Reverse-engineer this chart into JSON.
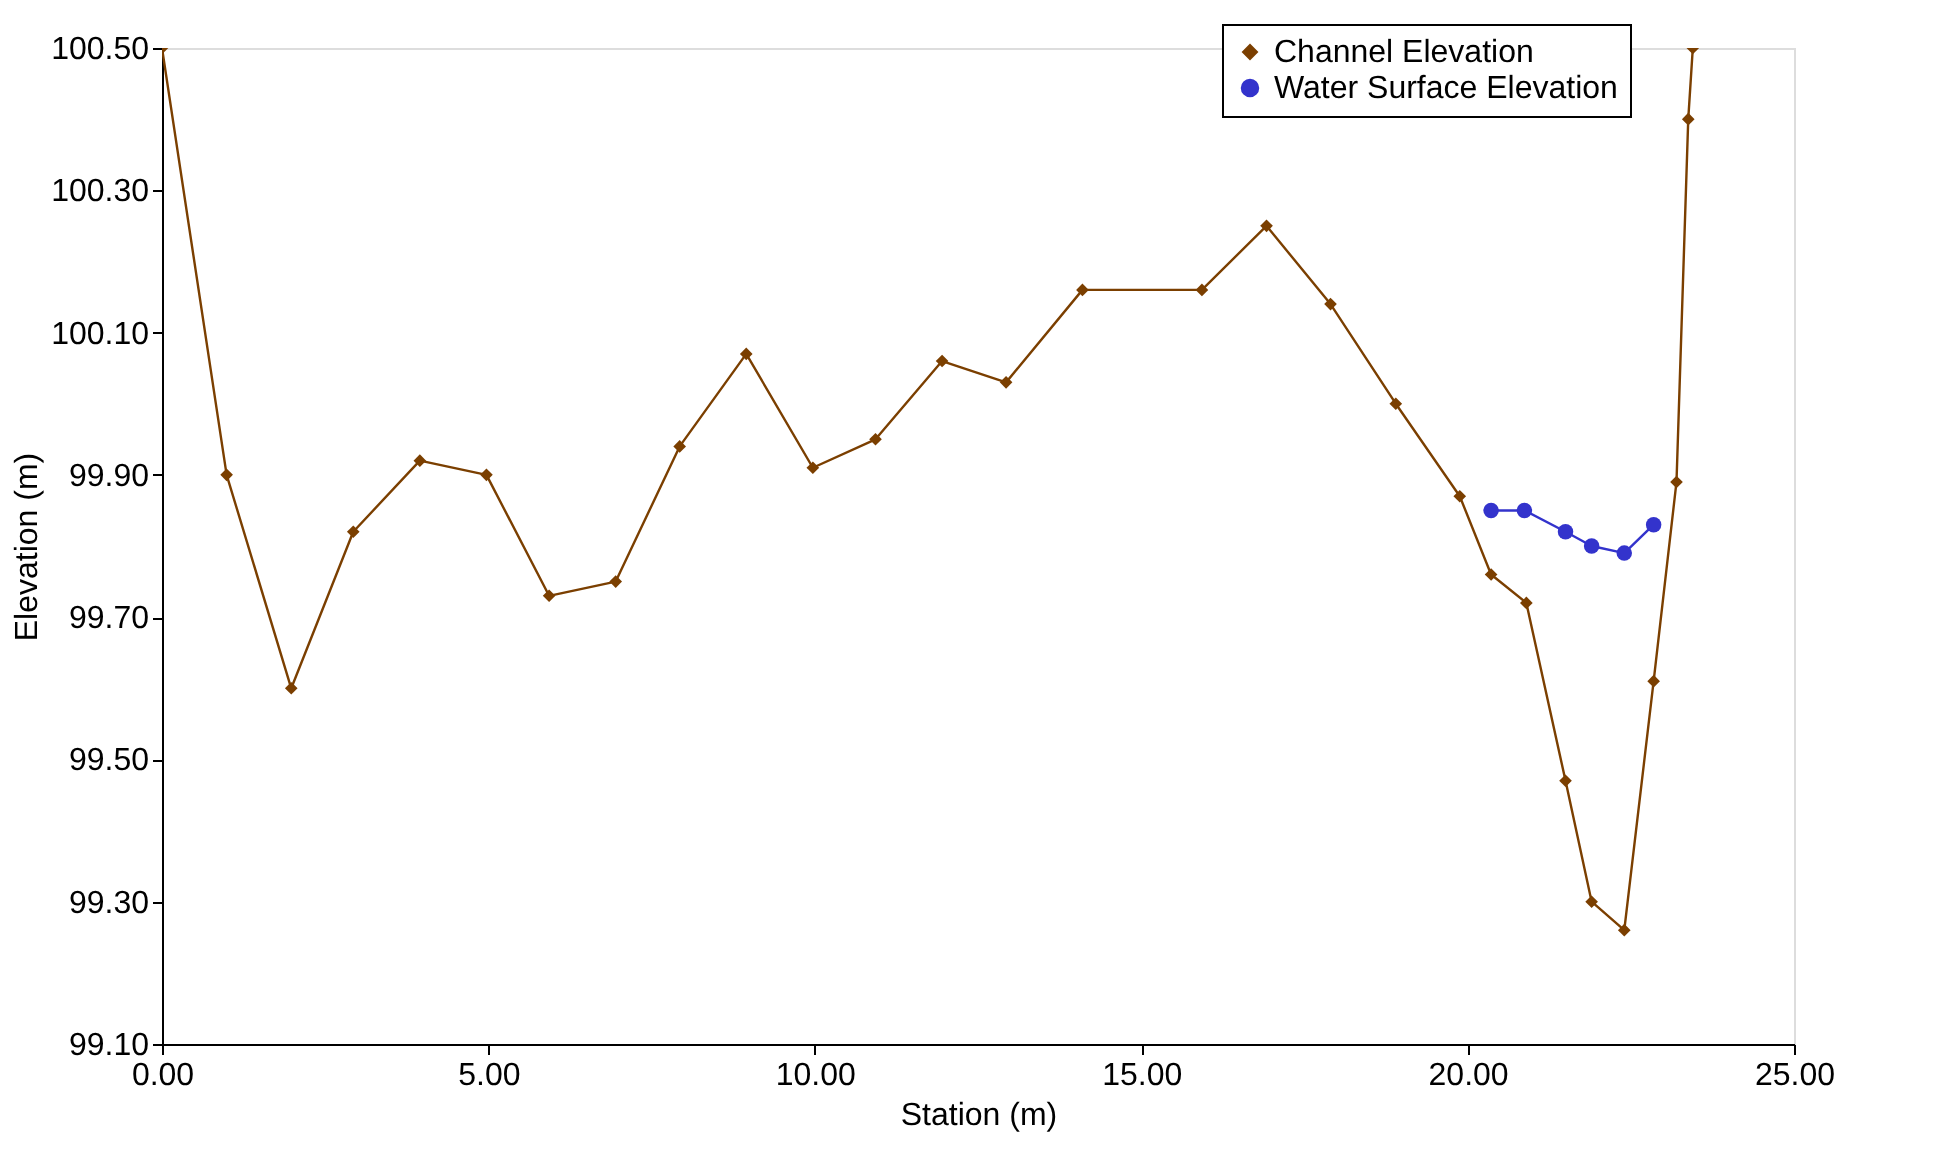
{
  "chart_data": {
    "type": "line",
    "xlabel": "Station (m)",
    "ylabel": "Elevation (m)",
    "xlim": [
      0,
      25
    ],
    "ylim": [
      99.1,
      100.5
    ],
    "xticks": [
      {
        "value": 0,
        "label": "0.00"
      },
      {
        "value": 5,
        "label": "5.00"
      },
      {
        "value": 10,
        "label": "10.00"
      },
      {
        "value": 15,
        "label": "15.00"
      },
      {
        "value": 20,
        "label": "20.00"
      },
      {
        "value": 25,
        "label": "25.00"
      }
    ],
    "yticks": [
      {
        "value": 99.1,
        "label": "99.10"
      },
      {
        "value": 99.3,
        "label": "99.30"
      },
      {
        "value": 99.5,
        "label": "99.50"
      },
      {
        "value": 99.7,
        "label": "99.70"
      },
      {
        "value": 99.9,
        "label": "99.90"
      },
      {
        "value": 100.1,
        "label": "100.10"
      },
      {
        "value": 100.3,
        "label": "100.30"
      },
      {
        "value": 100.5,
        "label": "100.50"
      }
    ],
    "grid": false,
    "legend": "top right",
    "line_style": "solid",
    "series": [
      {
        "name": "Channel Elevation",
        "color": "#7b3f00",
        "marker": "diamond",
        "x": [
          0,
          0.99,
          1.98,
          2.93,
          3.95,
          4.97,
          5.93,
          6.95,
          7.93,
          8.95,
          9.97,
          10.93,
          11.95,
          12.93,
          14.1,
          15.93,
          16.92,
          17.9,
          18.9,
          19.88,
          20.36,
          20.9,
          21.5,
          21.9,
          22.4,
          22.85,
          23.2,
          23.38,
          23.45
        ],
        "values": [
          100.5,
          99.9,
          99.6,
          99.82,
          99.92,
          99.9,
          99.73,
          99.75,
          99.94,
          100.07,
          99.91,
          99.95,
          100.06,
          100.03,
          100.16,
          100.16,
          100.25,
          100.14,
          100.0,
          99.87,
          99.76,
          99.72,
          99.47,
          99.3,
          99.26,
          99.61,
          99.89,
          100.4,
          100.5
        ]
      },
      {
        "name": "Water Surface Elevation",
        "color": "#3333cc",
        "marker": "circle",
        "x": [
          20.36,
          20.87,
          21.5,
          21.9,
          22.4,
          22.85
        ],
        "values": [
          99.85,
          99.85,
          99.82,
          99.8,
          99.79,
          99.83
        ]
      }
    ]
  }
}
